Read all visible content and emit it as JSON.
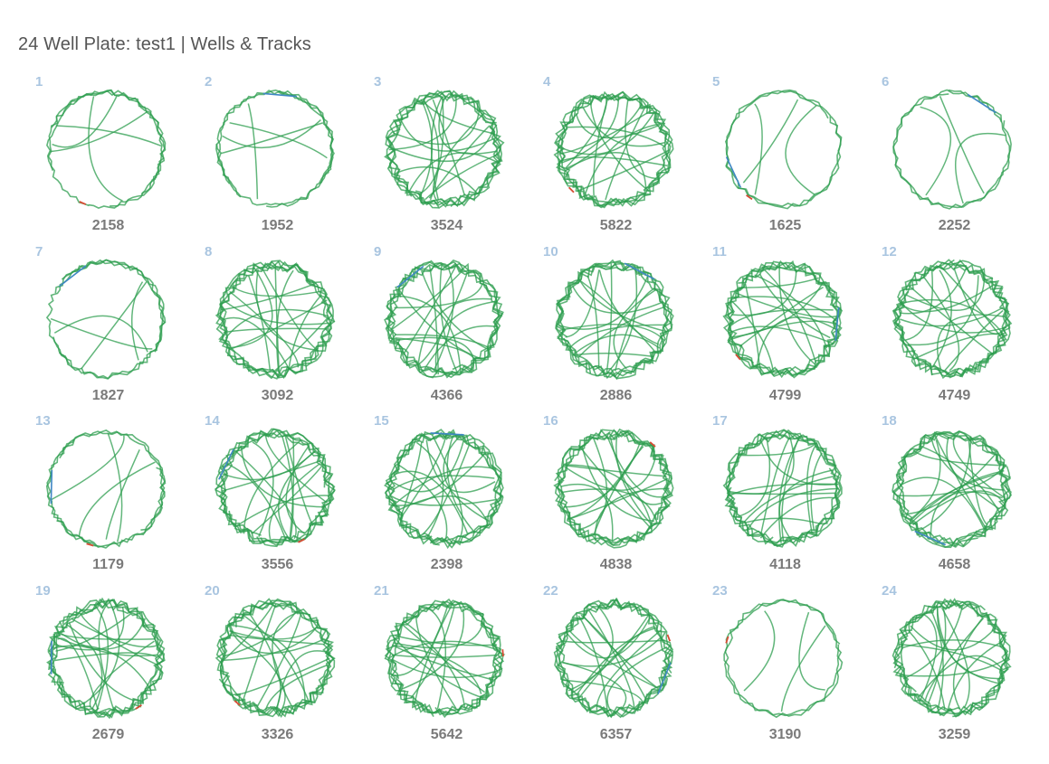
{
  "page": {
    "title": "24 Well Plate: test1  |  Wells & Tracks"
  },
  "colors": {
    "track_main": "#2e9e4f",
    "track_fast": "#3f87c4",
    "track_slow": "#d64b33",
    "well_number": "#a9c5e0",
    "count_text": "#7a7a7a",
    "title_text": "#555555"
  },
  "wells": [
    {
      "number": "1",
      "count": "2158",
      "style": "partial"
    },
    {
      "number": "2",
      "count": "1952",
      "style": "partial"
    },
    {
      "number": "3",
      "count": "3524",
      "style": "dense"
    },
    {
      "number": "4",
      "count": "5822",
      "style": "dense"
    },
    {
      "number": "5",
      "count": "1625",
      "style": "sparse"
    },
    {
      "number": "6",
      "count": "2252",
      "style": "sparse"
    },
    {
      "number": "7",
      "count": "1827",
      "style": "partial"
    },
    {
      "number": "8",
      "count": "3092",
      "style": "dense"
    },
    {
      "number": "9",
      "count": "4366",
      "style": "dense"
    },
    {
      "number": "10",
      "count": "2886",
      "style": "dense"
    },
    {
      "number": "11",
      "count": "4799",
      "style": "dense"
    },
    {
      "number": "12",
      "count": "4749",
      "style": "dense"
    },
    {
      "number": "13",
      "count": "1179",
      "style": "partial"
    },
    {
      "number": "14",
      "count": "3556",
      "style": "dense"
    },
    {
      "number": "15",
      "count": "2398",
      "style": "dense"
    },
    {
      "number": "16",
      "count": "4838",
      "style": "dense"
    },
    {
      "number": "17",
      "count": "4118",
      "style": "dense"
    },
    {
      "number": "18",
      "count": "4658",
      "style": "dense"
    },
    {
      "number": "19",
      "count": "2679",
      "style": "dense"
    },
    {
      "number": "20",
      "count": "3326",
      "style": "dense"
    },
    {
      "number": "21",
      "count": "5642",
      "style": "dense"
    },
    {
      "number": "22",
      "count": "6357",
      "style": "dense"
    },
    {
      "number": "23",
      "count": "3190",
      "style": "sparse"
    },
    {
      "number": "24",
      "count": "3259",
      "style": "dense"
    }
  ]
}
